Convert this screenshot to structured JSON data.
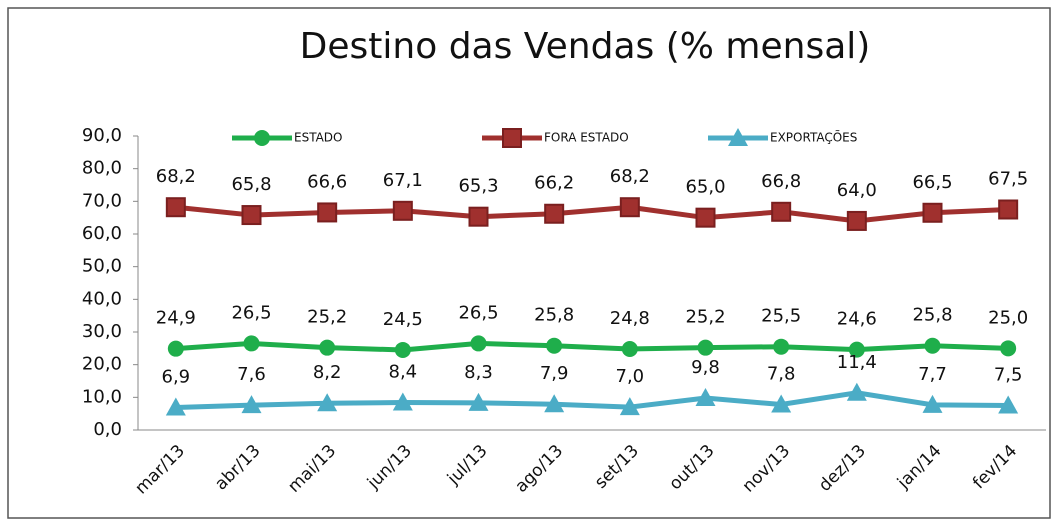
{
  "chart_data": {
    "type": "line",
    "title": "Destino das Vendas (% mensal)",
    "categories": [
      "mar/13",
      "abr/13",
      "mai/13",
      "jun/13",
      "jul/13",
      "ago/13",
      "set/13",
      "out/13",
      "nov/13",
      "dez/13",
      "jan/14",
      "fev/14"
    ],
    "series": [
      {
        "name": "ESTADO",
        "color": "#1fae4b",
        "marker": "circle",
        "values": [
          24.9,
          26.5,
          25.2,
          24.5,
          26.5,
          25.8,
          24.8,
          25.2,
          25.5,
          24.6,
          25.8,
          25.0
        ],
        "value_labels": [
          "24,9",
          "26,5",
          "25,2",
          "24,5",
          "26,5",
          "25,8",
          "24,8",
          "25,2",
          "25,5",
          "24,6",
          "25,8",
          "25,0"
        ]
      },
      {
        "name": "FORA ESTADO",
        "color": "#a0302e",
        "marker": "square",
        "values": [
          68.2,
          65.8,
          66.6,
          67.1,
          65.3,
          66.2,
          68.2,
          65.0,
          66.8,
          64.0,
          66.5,
          67.5
        ],
        "value_labels": [
          "68,2",
          "65,8",
          "66,6",
          "67,1",
          "65,3",
          "66,2",
          "68,2",
          "65,0",
          "66,8",
          "64,0",
          "66,5",
          "67,5"
        ]
      },
      {
        "name": "EXPORTAÇÕES",
        "color": "#4bacc6",
        "marker": "triangle",
        "values": [
          6.9,
          7.6,
          8.2,
          8.4,
          8.3,
          7.9,
          7.0,
          9.8,
          7.8,
          11.4,
          7.7,
          7.5
        ],
        "value_labels": [
          "6,9",
          "7,6",
          "8,2",
          "8,4",
          "8,3",
          "7,9",
          "7,0",
          "9,8",
          "7,8",
          "11,4",
          "7,7",
          "7,5"
        ]
      }
    ],
    "ylim": [
      0,
      90
    ],
    "yticks": [
      {
        "value": 0,
        "label": "0,0"
      },
      {
        "value": 10,
        "label": "10,0"
      },
      {
        "value": 20,
        "label": "20,0"
      },
      {
        "value": 30,
        "label": "30,0"
      },
      {
        "value": 40,
        "label": "40,0"
      },
      {
        "value": 50,
        "label": "50,0"
      },
      {
        "value": 60,
        "label": "60,0"
      },
      {
        "value": 70,
        "label": "70,0"
      },
      {
        "value": 80,
        "label": "80,0"
      },
      {
        "value": 90,
        "label": "90,0"
      }
    ],
    "grid": false,
    "legend": "top"
  }
}
